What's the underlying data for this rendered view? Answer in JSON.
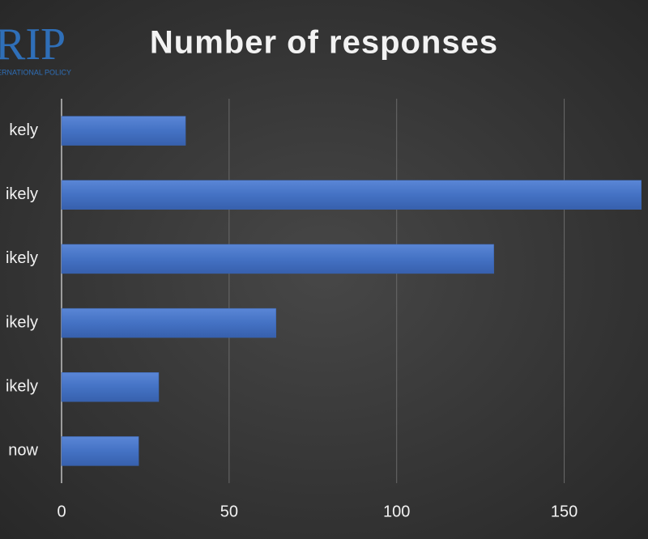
{
  "logo": {
    "text": "RIP",
    "subtitle": "ERNATIONAL POLICY"
  },
  "chart_data": {
    "type": "bar",
    "orientation": "horizontal",
    "title": "Number of responses",
    "categories": [
      "kely",
      "ikely",
      "ikely",
      "ikely",
      "ikely",
      "now"
    ],
    "values": [
      37,
      173,
      129,
      64,
      29,
      23
    ],
    "color": "#4472c4",
    "xlim": [
      0,
      175
    ],
    "xticks": [
      0,
      50,
      100,
      150
    ],
    "grid": true
  }
}
